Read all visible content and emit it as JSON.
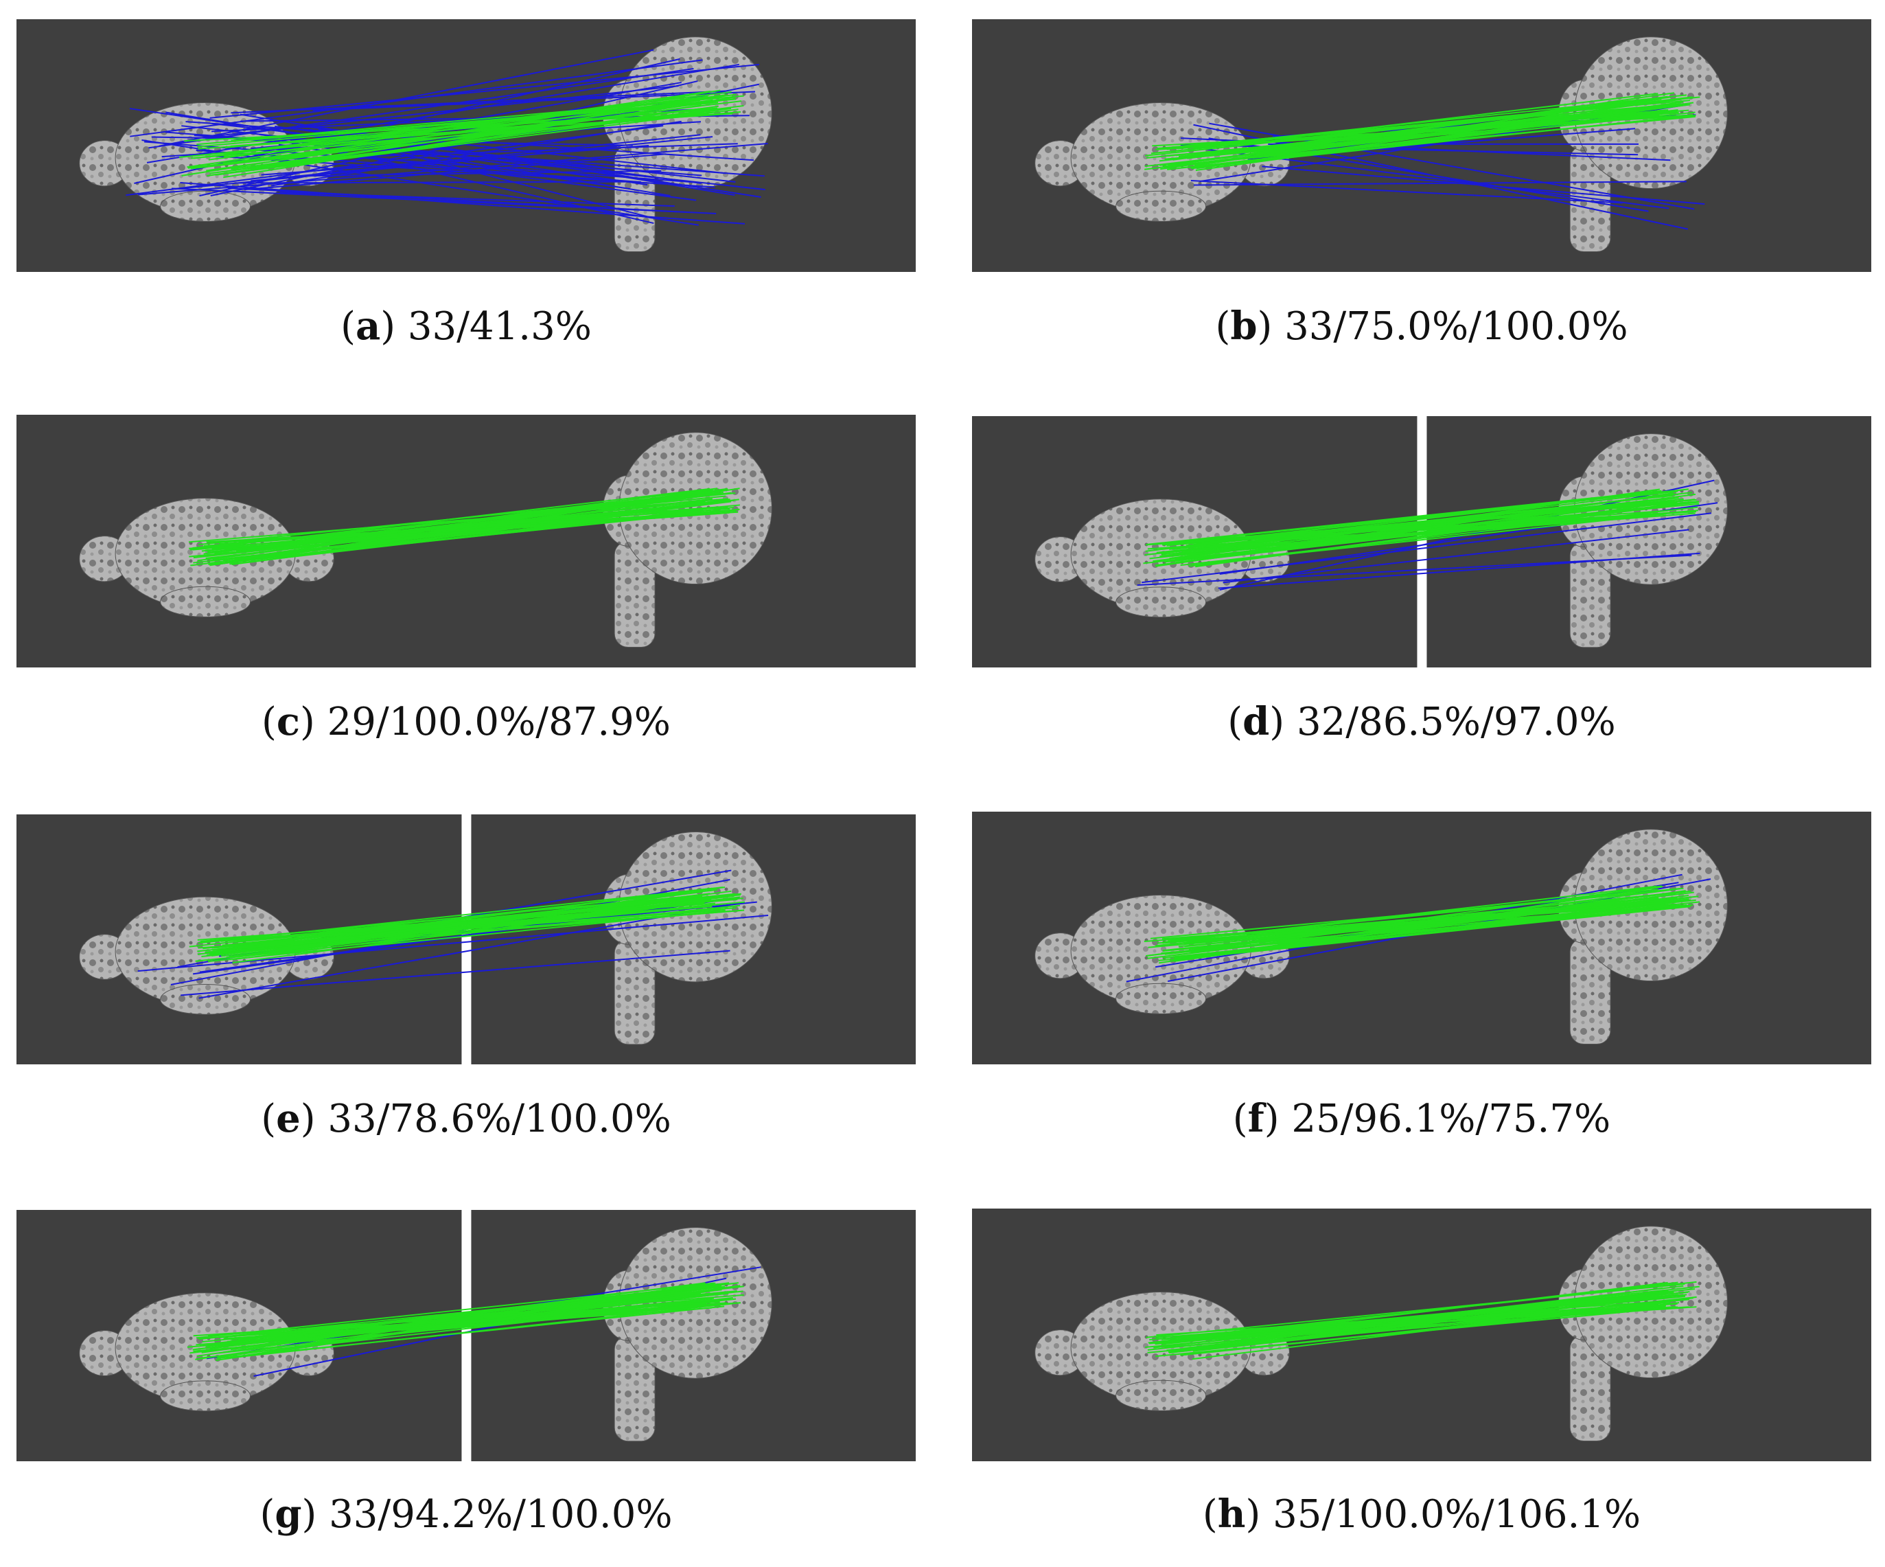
{
  "colors": {
    "background": "#3f3f3f",
    "separator": "#ffffff",
    "inlier": "#22e01c",
    "outlier": "#1a1ad8",
    "mesh": "#b5b5b5"
  },
  "panels": [
    {
      "id": "a",
      "label": "a",
      "text": "33/41.3%",
      "split": false,
      "inliers": 30,
      "outliers": 50,
      "pattern": "scattered"
    },
    {
      "id": "b",
      "label": "b",
      "text": "33/75.0%/100.0%",
      "split": false,
      "inliers": 40,
      "outliers": 14,
      "pattern": "crossing"
    },
    {
      "id": "c",
      "label": "c",
      "text": "29/100.0%/87.9%",
      "split": false,
      "inliers": 45,
      "outliers": 0,
      "pattern": "parallel"
    },
    {
      "id": "d",
      "label": "d",
      "text": "32/86.5%/97.0%",
      "split": true,
      "inliers": 45,
      "outliers": 6,
      "pattern": "parallel"
    },
    {
      "id": "e",
      "label": "e",
      "text": "33/78.6%/100.0%",
      "split": true,
      "inliers": 45,
      "outliers": 8,
      "pattern": "parallel"
    },
    {
      "id": "f",
      "label": "f",
      "text": "25/96.1%/75.7%",
      "split": false,
      "inliers": 40,
      "outliers": 3,
      "pattern": "parallel"
    },
    {
      "id": "g",
      "label": "g",
      "text": "33/94.2%/100.0%",
      "split": true,
      "inliers": 45,
      "outliers": 2,
      "pattern": "parallel"
    },
    {
      "id": "h",
      "label": "h",
      "text": "35/100.0%/106.1%",
      "split": false,
      "inliers": 40,
      "outliers": 0,
      "pattern": "parallel"
    }
  ]
}
